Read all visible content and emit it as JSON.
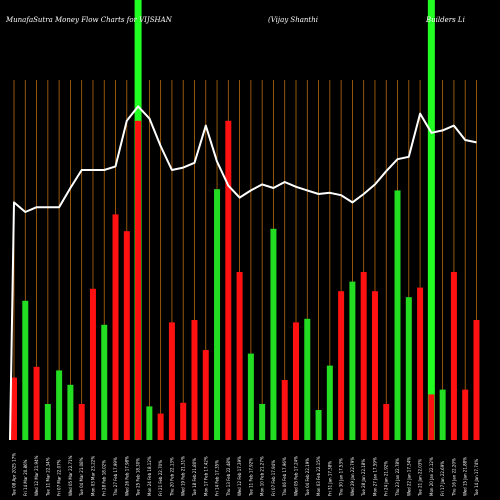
{
  "header": {
    "left": "MunafaSutra  Money Flow  Charts for VIJSHAN",
    "middle": "(Vijay Shanthi",
    "right": "Builders Li"
  },
  "colors": {
    "background": "#000000",
    "up": "#22dd22",
    "down": "#ff1111",
    "grid": "#b86a10",
    "line": "#ffffff",
    "highlight": "#22ff22"
  },
  "chart_data": {
    "type": "bar",
    "title": "MunafaSutra  Money Flow  Charts for VIJSHAN (Vijay Shanthi Builders Li",
    "categories": [
      "Tue 08 Apr 2025",
      "Fri 14 Mar 2025",
      "Wed 12 Mar 2025",
      "Tue 11 Mar 2025",
      "Fri 07 Mar 2025",
      "Wed 05 Mar 2025",
      "Tue 04 Mar 2025",
      "Mon 03 Mar 2025",
      "Fri 28 Feb 2025",
      "Thu 27 Feb 2025",
      "Wed 26 Feb 2025",
      "Tue 25 Feb 2025",
      "Mon 24 Feb 2025",
      "Fri 21 Feb 2025",
      "Thu 20 Feb 2025",
      "Wed 19 Feb 2025",
      "Tue 18 Feb 2025",
      "Mon 17 Feb 2025",
      "Fri 14 Feb 2025",
      "Thu 13 Feb 2025",
      "Wed 12 Feb 2025",
      "Tue 11 Feb 2025",
      "Mon 10 Feb 2025",
      "Fri 07 Feb 2025",
      "Thu 06 Feb 2025",
      "Wed 05 Feb 2025",
      "Tue 04 Feb 2025",
      "Mon 03 Feb 2025",
      "Fri 31 Jan 2025",
      "Thu 30 Jan 2025",
      "Wed 29 Jan 2025",
      "Tue 28 Jan 2025",
      "Mon 27 Jan 2025",
      "Fri 24 Jan 2025",
      "Thu 23 Jan 2025",
      "Wed 22 Jan 2025",
      "Tue 21 Jan 2025",
      "Mon 20 Jan 2025",
      "Fri 17 Jan 2025",
      "Thu 16 Jan 2025",
      "Wed 15 Jan 2025",
      "Tue 14 Jan 2025"
    ],
    "tick_labels": [
      "Tue 08 Apr 2025 17%",
      "Fri 14 Mar 20.86%",
      "Wed 12 Mar 21.94%",
      "Tue 11 Mar 22.34%",
      "Fri 07 Mar 22.07%",
      "Wed 05 Mar 22.71%",
      "Tue 04 Mar 21.08%",
      "Mon 03 Mar 23.22%",
      "Fri 28 Feb 18.02%",
      "Thu 27 Feb 17.99%",
      "Wed 26 Feb 17.98%",
      "Tue 25 Feb 18.30%",
      "Mon 24 Feb 18.12%",
      "Fri 21 Feb 22.70%",
      "Thu 20 Feb 22.13%",
      "Wed 19 Feb 21.31%",
      "Tue 18 Feb 21.80%",
      "Mon 17 Feb 17.42%",
      "Fri 14 Feb 17.35%",
      "Thu 13 Feb 22.48%",
      "Wed 12 Feb 17.39%",
      "Tue 11 Feb 17.92%",
      "Mon 10 Feb 21.27%",
      "Fri 07 Feb 17.94%",
      "Thu 06 Feb 17.96%",
      "Wed 05 Feb 17.24%",
      "Tue 04 Feb 22.19%",
      "Mon 03 Feb 22.15%",
      "Fri 31 Jan 17.38%",
      "Thu 30 Jan 17.53%",
      "Wed 29 Jan 22.79%",
      "Tue 28 Jan 22.18%",
      "Mon 27 Jan 17.59%",
      "Fri 24 Jan 21.92%",
      "Thu 23 Jan 22.78%",
      "Wed 22 Jan 17.34%",
      "Tue 21 Jan 22.03%",
      "Mon 20 Jan 22.12%",
      "Fri 17 Jan 22.69%",
      "Thu 16 Jan 22.20%",
      "Wed 15 Jan 21.88%",
      "Tue 14 Jan 17.74%"
    ],
    "bar_values": [
      52,
      116,
      61,
      30,
      58,
      46,
      30,
      126,
      96,
      188,
      174,
      266,
      28,
      22,
      98,
      31,
      100,
      75,
      209,
      266,
      140,
      72,
      30,
      176,
      50,
      98,
      101,
      25,
      62,
      124,
      132,
      140,
      124,
      30,
      208,
      119,
      127,
      38,
      42,
      140,
      42,
      100
    ],
    "bar_colors": [
      "red",
      "green",
      "red",
      "green",
      "green",
      "green",
      "red",
      "red",
      "green",
      "red",
      "red",
      "red",
      "green",
      "red",
      "red",
      "red",
      "red",
      "red",
      "green",
      "red",
      "red",
      "green",
      "green",
      "green",
      "red",
      "red",
      "green",
      "green",
      "green",
      "red",
      "green",
      "red",
      "red",
      "red",
      "green",
      "green",
      "red",
      "red",
      "green",
      "red",
      "red",
      "red"
    ],
    "line_values": [
      198,
      190,
      194,
      194,
      194,
      210,
      225,
      225,
      225,
      228,
      266,
      278,
      268,
      245,
      225,
      227,
      231,
      262,
      232,
      212,
      202,
      208,
      213,
      210,
      215,
      211,
      208,
      205,
      206,
      204,
      198,
      205,
      213,
      224,
      234,
      236,
      272,
      256,
      258,
      262,
      250,
      248
    ],
    "highlight_indices": [
      11,
      37
    ],
    "ylim": [
      0,
      300
    ],
    "grid": "vertical",
    "xlabel": "",
    "ylabel": ""
  }
}
